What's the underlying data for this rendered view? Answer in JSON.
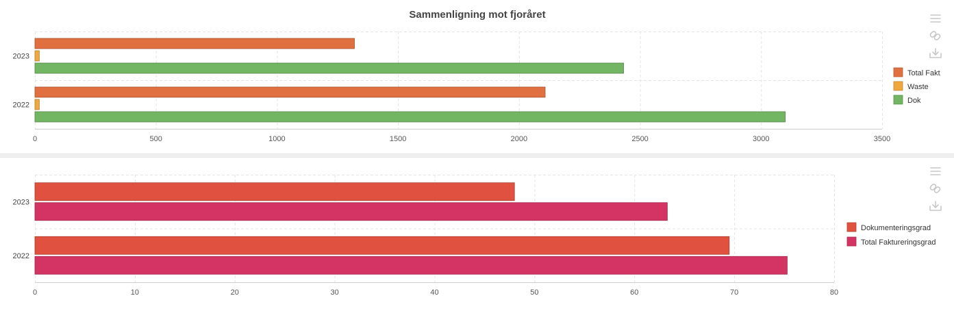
{
  "toolbar_icons": [
    "menu-icon",
    "link-icon",
    "download-icon"
  ],
  "chart_data": [
    {
      "type": "bar",
      "orientation": "horizontal",
      "title": "Sammenligning mot fjoråret",
      "categories": [
        "2023",
        "2022"
      ],
      "series": [
        {
          "name": "Total Fakt",
          "color": "#e07040",
          "values": [
            1320,
            2108
          ]
        },
        {
          "name": "Waste",
          "color": "#efa83e",
          "values": [
            18,
            18
          ]
        },
        {
          "name": "Dok",
          "color": "#72b562",
          "values": [
            2432,
            3100
          ]
        }
      ],
      "xlim": [
        0,
        3500
      ],
      "xticks": [
        0,
        500,
        1000,
        1500,
        2000,
        2500,
        3000,
        3500
      ],
      "grid": true,
      "legend": "right"
    },
    {
      "type": "bar",
      "orientation": "horizontal",
      "title": "",
      "categories": [
        "2023",
        "2022"
      ],
      "series": [
        {
          "name": "Dokumenteringsgrad",
          "color": "#e0513f",
          "values": [
            48,
            69.5
          ]
        },
        {
          "name": "Total Faktureringsgrad",
          "color": "#d43463",
          "values": [
            63.3,
            75.3
          ]
        }
      ],
      "xlim": [
        0,
        80
      ],
      "xticks": [
        0,
        10,
        20,
        30,
        40,
        50,
        60,
        70,
        80
      ],
      "grid": true,
      "legend": "right"
    }
  ]
}
